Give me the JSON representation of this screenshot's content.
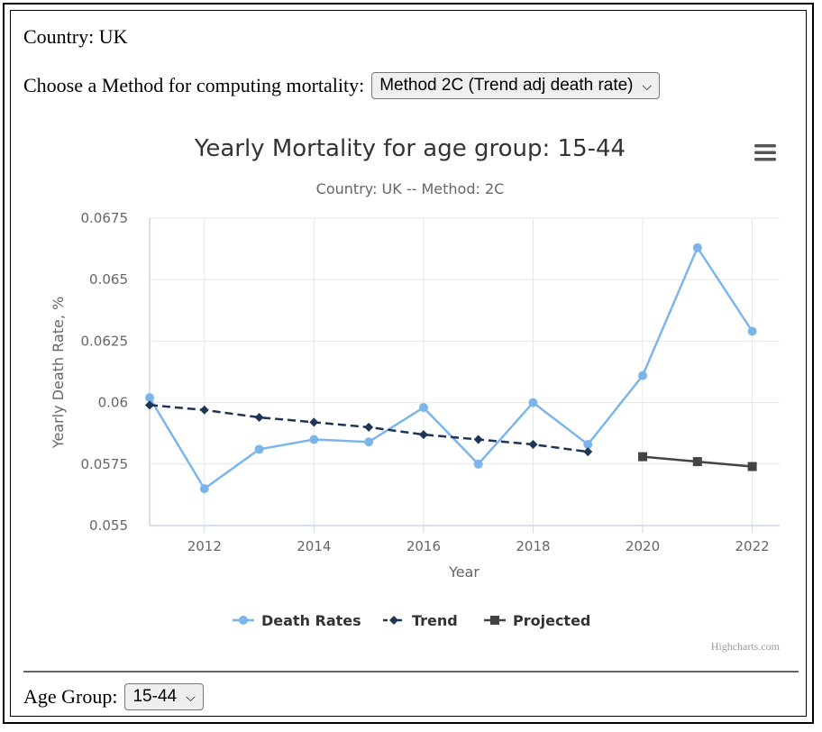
{
  "country_label": "Country: UK",
  "method_prompt": "Choose a Method for computing mortality:",
  "method_select": {
    "value": "Method 2C (Trend adj death rate)"
  },
  "age_group_prompt": "Age Group:",
  "age_group_select": {
    "value": "15-44"
  },
  "chart_data": {
    "type": "line",
    "title": "Yearly Mortality for age group: 15-44",
    "subtitle": "Country: UK -- Method: 2C",
    "xlabel": "Year",
    "ylabel": "Yearly Death Rate, %",
    "x_ticks": [
      "2012",
      "2014",
      "2016",
      "2018",
      "2020",
      "2022"
    ],
    "y_ticks": [
      "0.055",
      "0.0575",
      "0.06",
      "0.0625",
      "0.065",
      "0.0675"
    ],
    "xlim": [
      2011,
      2022.5
    ],
    "ylim": [
      0.055,
      0.0675
    ],
    "grid": true,
    "legend_position": "bottom-center",
    "credit": "Highcharts.com",
    "series": [
      {
        "name": "Death Rates",
        "marker": "circle",
        "color": "#7cb5ec",
        "dash": "solid",
        "x": [
          2011,
          2012,
          2013,
          2014,
          2015,
          2016,
          2017,
          2018,
          2019,
          2020,
          2021,
          2022
        ],
        "y": [
          0.0602,
          0.0565,
          0.0581,
          0.0585,
          0.0584,
          0.0598,
          0.0575,
          0.06,
          0.0583,
          0.0611,
          0.0663,
          0.0629
        ]
      },
      {
        "name": "Trend",
        "marker": "diamond",
        "color": "#1d3557",
        "dash": "dashed",
        "x": [
          2011,
          2012,
          2013,
          2014,
          2015,
          2016,
          2017,
          2018,
          2019
        ],
        "y": [
          0.0599,
          0.0597,
          0.0594,
          0.0592,
          0.059,
          0.0587,
          0.0585,
          0.0583,
          0.058
        ]
      },
      {
        "name": "Projected",
        "marker": "square",
        "color": "#434348",
        "dash": "solid",
        "x": [
          2020,
          2021,
          2022
        ],
        "y": [
          0.0578,
          0.0576,
          0.0574
        ]
      }
    ]
  }
}
